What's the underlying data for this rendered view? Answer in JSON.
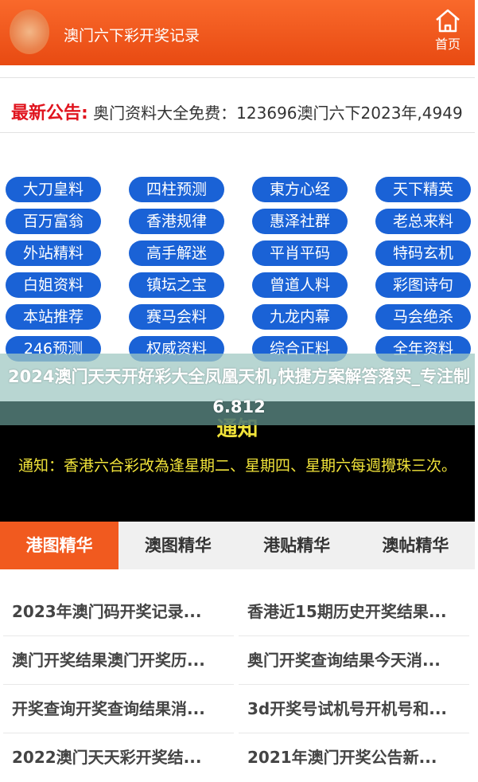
{
  "header": {
    "title": "澳门六下彩开奖记录",
    "home_label": "首页",
    "accent": "#f15a1f"
  },
  "announcement": {
    "label": "最新公告:",
    "text": "奥门资料大全免费：123696澳门六下2023年,4949"
  },
  "buttons": [
    "大刀皇料",
    "四柱预测",
    "東方心经",
    "天下精英",
    "百万富翁",
    "香港规律",
    "惠泽社群",
    "老总来料",
    "外站精料",
    "高手解迷",
    "平肖平码",
    "特码玄机",
    "白姐资料",
    "镇坛之宝",
    "曾道人料",
    "彩图诗句",
    "本站推荐",
    "赛马会料",
    "九龙内幕",
    "马会绝杀",
    "246预测",
    "权威资料",
    "综合正料",
    "全年资料"
  ],
  "overlay": {
    "title": "2024澳门天天开好彩大全凤凰天机,快捷方案解答落实_专注制6.812"
  },
  "notice": {
    "heading": "通知",
    "text": "通知：香港六合彩改為逢星期二、星期四、星期六每週攪珠三次。"
  },
  "tabs": [
    {
      "label": "港图精华",
      "active": true
    },
    {
      "label": "澳图精华"
    },
    {
      "label": "港贴精华"
    },
    {
      "label": "澳帖精华"
    }
  ],
  "articles": [
    "2023年澳门码开奖记录...",
    "香港近15期历史开奖结果...",
    "澳门开奖结果澳门开奖历...",
    "奥门开奖查询结果今天消...",
    "开奖查询开奖查询结果消...",
    "3d开奖号试机号开机号和...",
    "2022澳门天天彩开奖结...",
    "2021年澳门开奖公告新..."
  ]
}
